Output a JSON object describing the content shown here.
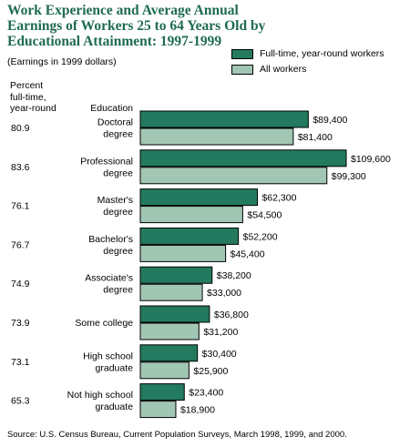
{
  "title": "Work Experience and Average Annual Earnings of Workers 25 to 64 Years Old by Educational Attainment: 1997-1999",
  "subtitle": "(Earnings in 1999 dollars)",
  "column_headers": {
    "percent": [
      "Percent",
      "full-time,",
      "year-round"
    ],
    "education": "Education"
  },
  "legend": [
    {
      "label": "Full-time, year-round workers",
      "color": "#237a5f"
    },
    {
      "label": "All workers",
      "color": "#a2c6b4"
    }
  ],
  "source": "Source: U.S. Census Bureau, Current Population Surveys, March 1998, 1999, and 2000.",
  "chart_data": {
    "type": "bar",
    "orientation": "horizontal",
    "categories": [
      [
        "Doctoral",
        "degree"
      ],
      [
        "Professional",
        "degree"
      ],
      [
        "Master's",
        "degree"
      ],
      [
        "Bachelor's",
        "degree"
      ],
      [
        "Associate's",
        "degree"
      ],
      [
        "Some college"
      ],
      [
        "High school",
        "graduate"
      ],
      [
        "Not high school",
        "graduate"
      ]
    ],
    "percent_full_time": [
      "80.9",
      "83.6",
      "76.1",
      "76.7",
      "74.9",
      "73.9",
      "73.1",
      "65.3"
    ],
    "series": [
      {
        "name": "Full-time, year-round workers",
        "color": "#237a5f",
        "values": [
          89400,
          109600,
          62300,
          52200,
          38200,
          36800,
          30400,
          23400
        ],
        "labels": [
          "$89,400",
          "$109,600",
          "$62,300",
          "$52,200",
          "$38,200",
          "$36,800",
          "$30,400",
          "$23,400"
        ]
      },
      {
        "name": "All workers",
        "color": "#a2c6b4",
        "values": [
          81400,
          99300,
          54500,
          45400,
          33000,
          31200,
          25900,
          18900
        ],
        "labels": [
          "$81,400",
          "$99,300",
          "$54,500",
          "$45,400",
          "$33,000",
          "$31,200",
          "$25,900",
          "$18,900"
        ]
      }
    ],
    "xlim": [
      0,
      109600
    ],
    "grid": false,
    "legend_position": "top-right"
  }
}
